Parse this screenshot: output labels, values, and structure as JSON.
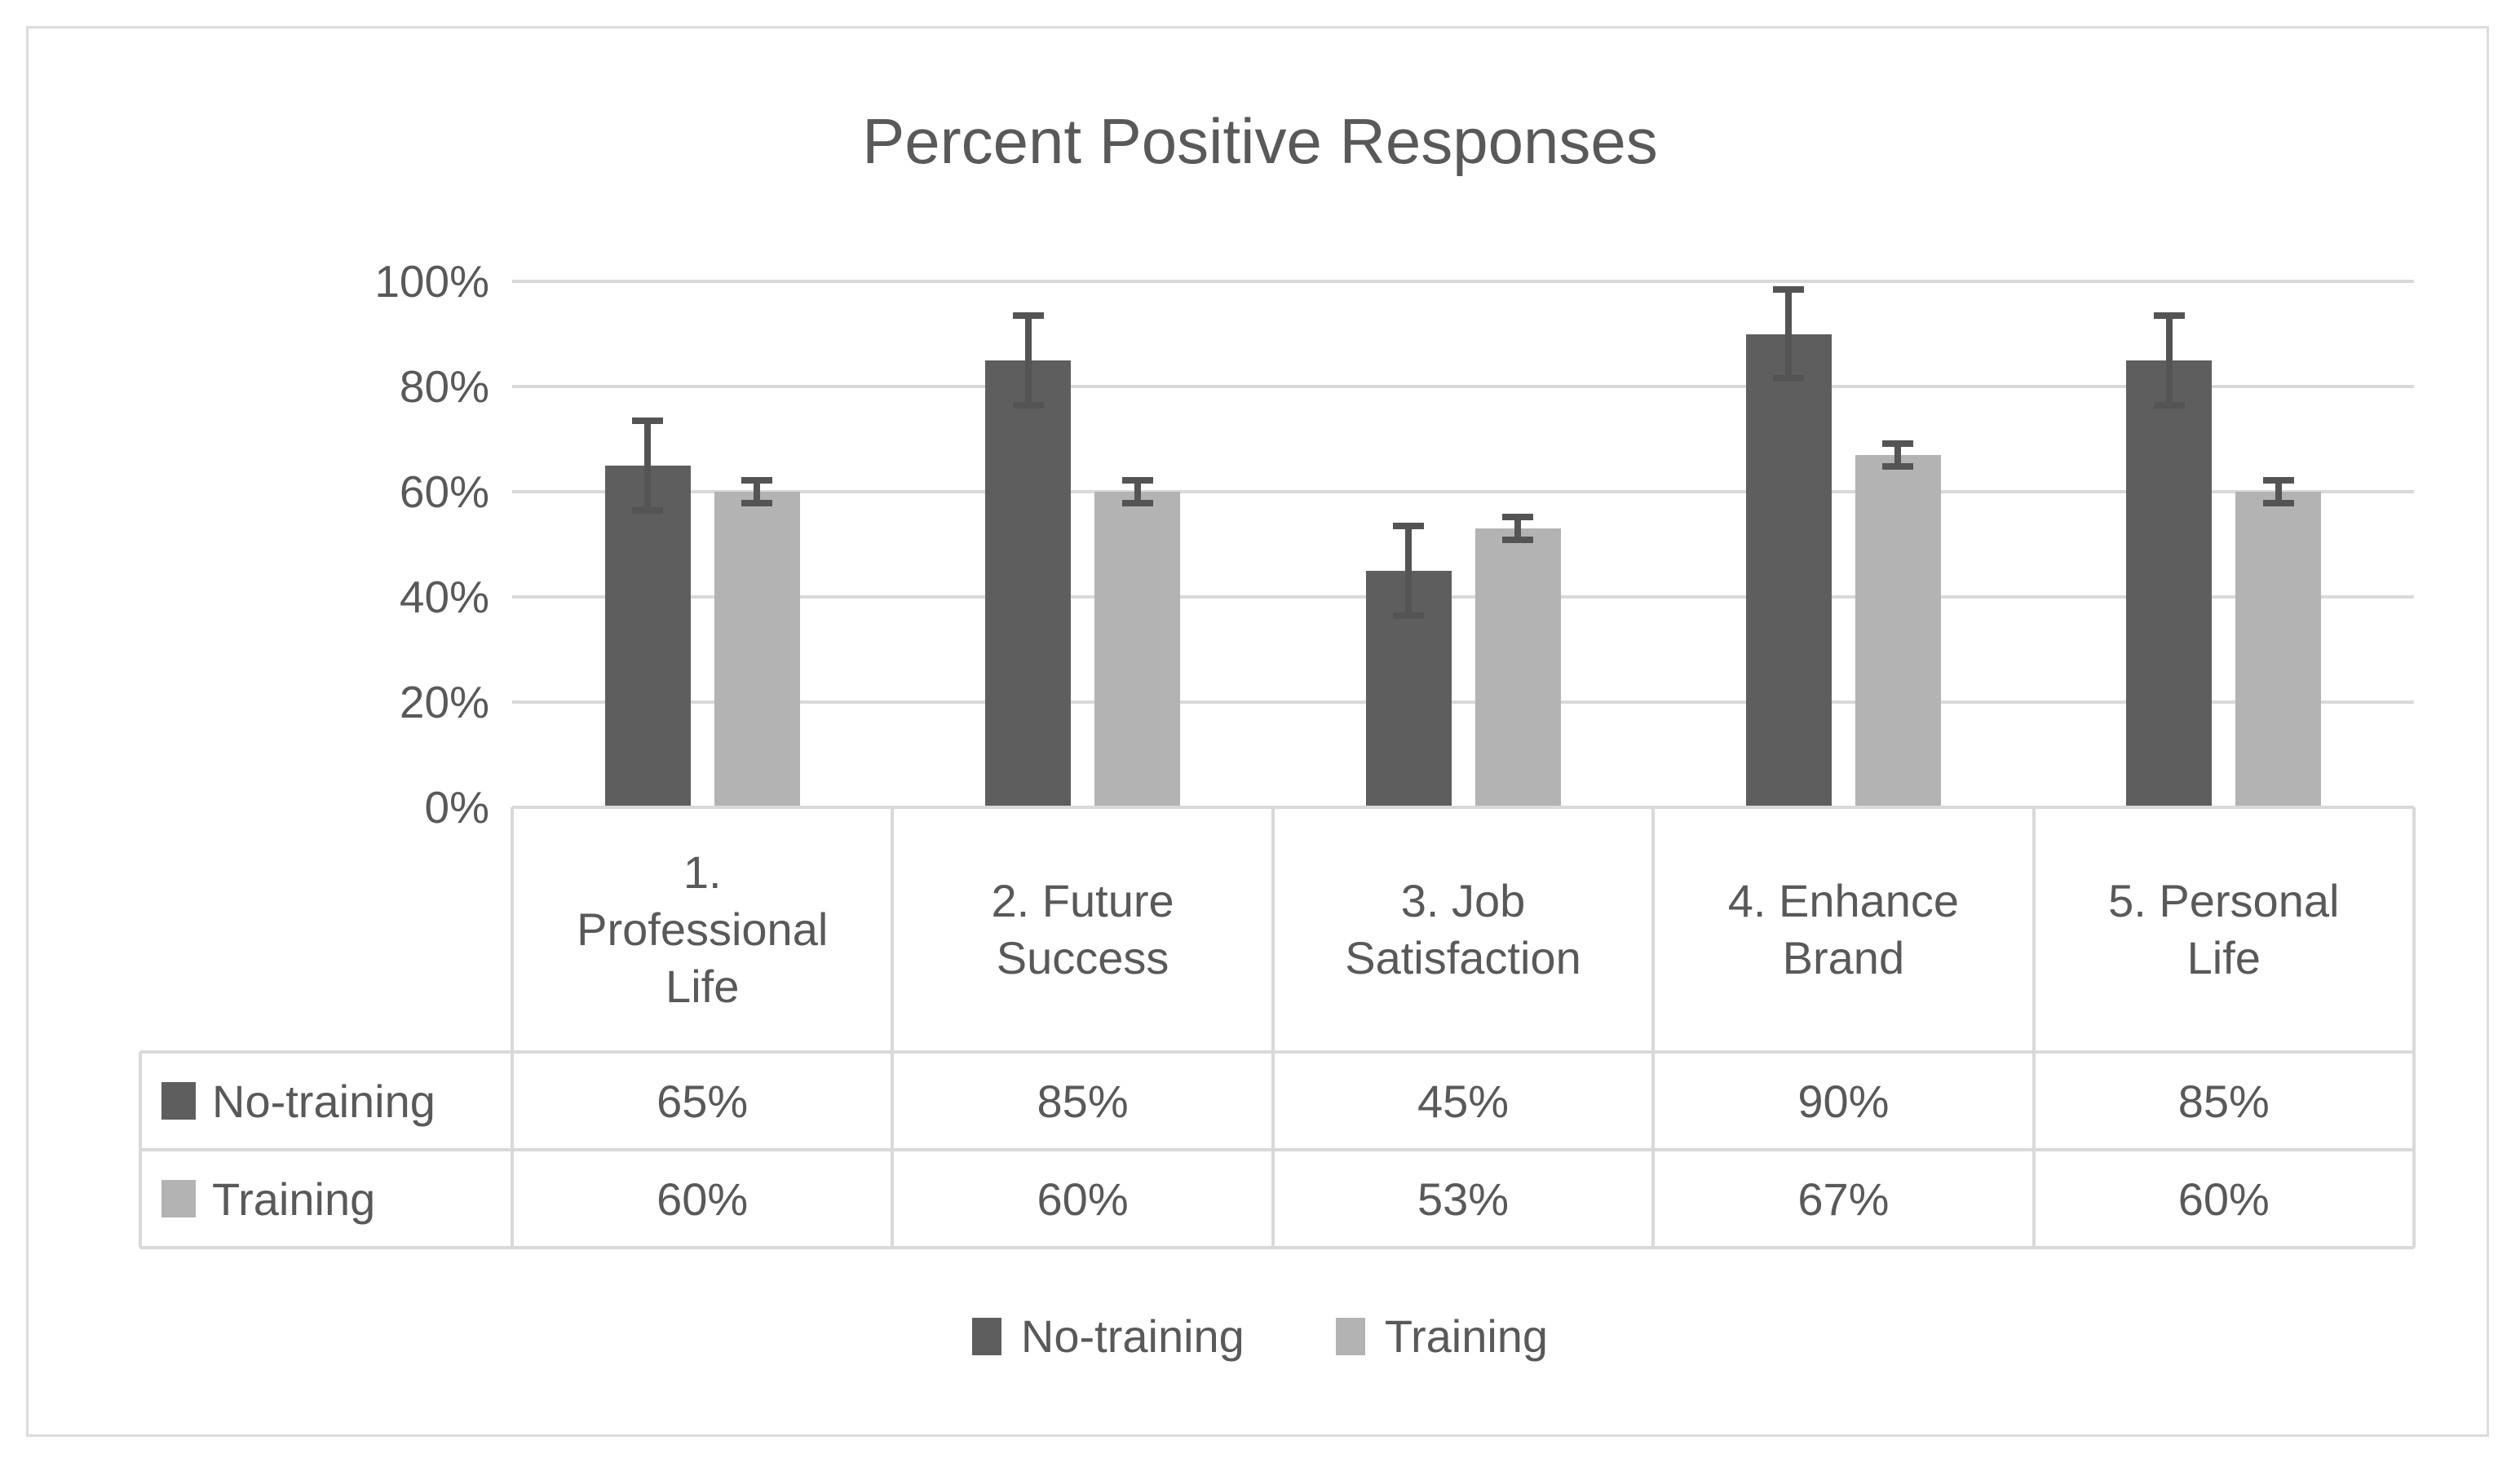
{
  "chart_data": {
    "type": "bar",
    "title": "Percent Positive Responses",
    "categories": [
      {
        "label": "1. Professional Life",
        "lines": [
          "1.",
          "Professional",
          "Life"
        ]
      },
      {
        "label": "2. Future Success",
        "lines": [
          "2. Future",
          "Success"
        ]
      },
      {
        "label": "3. Job Satisfaction",
        "lines": [
          "3. Job",
          "Satisfaction"
        ]
      },
      {
        "label": "4. Enhance Brand",
        "lines": [
          "4. Enhance",
          "Brand"
        ]
      },
      {
        "label": "5. Personal Life",
        "lines": [
          "5. Personal",
          "Life"
        ]
      }
    ],
    "series": [
      {
        "name": "No-training",
        "color": "#5e5e5e",
        "values": [
          65,
          85,
          45,
          90,
          85
        ],
        "error": 8.5,
        "value_labels": [
          "65%",
          "85%",
          "45%",
          "90%",
          "85%"
        ]
      },
      {
        "name": "Training",
        "color": "#b3b3b3",
        "values": [
          60,
          60,
          53,
          67,
          60
        ],
        "error": 2.2,
        "value_labels": [
          "60%",
          "60%",
          "53%",
          "67%",
          "60%"
        ]
      }
    ],
    "y_ticks": [
      {
        "label": "0%",
        "value": 0
      },
      {
        "label": "20%",
        "value": 20
      },
      {
        "label": "40%",
        "value": 40
      },
      {
        "label": "60%",
        "value": 60
      },
      {
        "label": "80%",
        "value": 80
      },
      {
        "label": "100%",
        "value": 100
      }
    ],
    "ylim": [
      0,
      100
    ],
    "grid": true,
    "data_table": true,
    "legend_position": "bottom",
    "colors": {
      "text": "#595959",
      "gridline": "#d9d9d9",
      "table_border": "#d9d9d9",
      "error_bar": "#545454",
      "frame_border": "#dcdcdc"
    }
  }
}
